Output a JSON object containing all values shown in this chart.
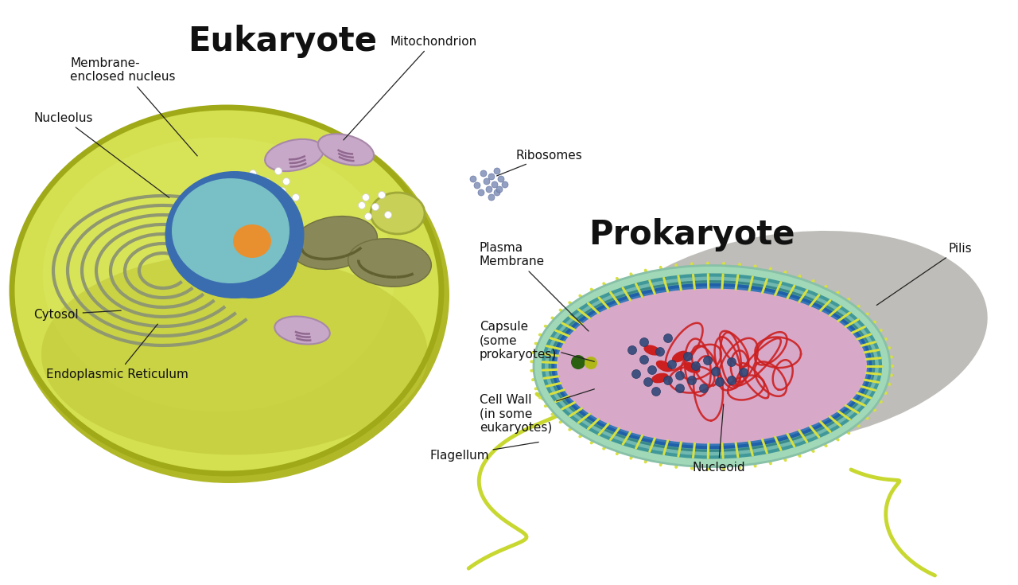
{
  "bg_color": "#ffffff",
  "eukaryote_title": "Eukaryote",
  "prokaryote_title": "Prokaryote",
  "euk_cell_outer": "#c8cc3a",
  "euk_cell_color": "#d4e050",
  "euk_cell_inner": "#c8d040",
  "euk_cell_bowl": "#b8c030",
  "euk_cell_outline": "#a0aa20",
  "nucleus_outer_color": "#3a6cb0",
  "nucleus_outer2": "#5080c0",
  "nucleus_inner_color": "#78c0c5",
  "nucleolus_color": "#e89030",
  "er_color": "#909870",
  "er_color2": "#787850",
  "mito_outer": "#c8a8c8",
  "mito_inner": "#a888a8",
  "mito_line": "#906890",
  "chloro_color": "#808858",
  "ribosome_euk": "#e8e8e8",
  "pro_shadow_color": "#909088",
  "pro_capsule_color": "#80c8a8",
  "pro_capsule_fill": "#a0d8b8",
  "pro_wall_color": "#50a0a0",
  "pro_wall_fill": "#70b8b0",
  "pro_membrane_color": "#2860a0",
  "pro_membrane_fill": "#4080b8",
  "pro_cytoplasm": "#d8a8c8",
  "pro_nucleoid_color": "#cc2020",
  "pro_ribosome_color": "#304878",
  "pro_pili_color": "#d8e040",
  "pro_flagellum_color": "#c8d830",
  "labels": {
    "membrane_nucleus": "Membrane-\nenclosed nucleus",
    "nucleolus": "Nucleolus",
    "mitochondrion": "Mitochondrion",
    "ribosomes": "Ribosomes",
    "plasma_membrane": "Plasma\nMembrane",
    "cytosol": "Cytosol",
    "endoplasmic": "Endoplasmic Reticulum",
    "capsule": "Capsule\n(some\nprokaryotes)",
    "cell_wall": "Cell Wall\n(in some\neukaryotes)",
    "flagellum": "Flagellum",
    "nucleoid": "Nucleoid",
    "pilis": "Pilis"
  },
  "font_size_title": 30,
  "font_size_label": 11
}
